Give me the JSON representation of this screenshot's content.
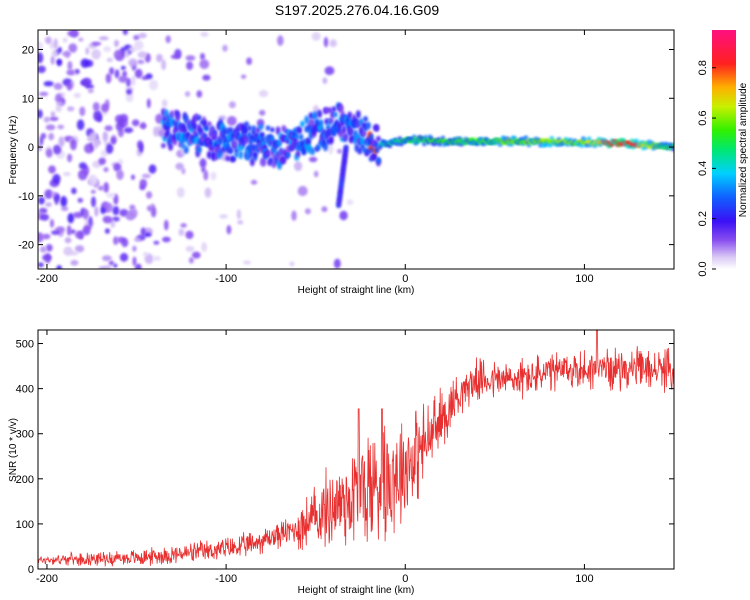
{
  "title": "S197.2025.276.04.16.G09",
  "chart_data": [
    {
      "type": "heatmap",
      "xlabel": "Height of straight line (km)",
      "ylabel": "Frequency (Hz)",
      "xlim": [
        -205,
        150
      ],
      "ylim": [
        -25,
        24
      ],
      "xticks": [
        -200,
        -100,
        0,
        100
      ],
      "yticks": [
        -20,
        -10,
        0,
        10,
        20
      ],
      "colorbar": {
        "label": "Normalized spectral amplitude",
        "range": [
          0.0,
          0.95
        ],
        "ticks": [
          0.0,
          0.2,
          0.4,
          0.6,
          0.8
        ],
        "tick_labels": [
          "0.0",
          "0.2",
          "0.4",
          "0.6",
          "0.8"
        ],
        "colormap": "rainbow (violet-blue-cyan-green-yellow-red-magenta)"
      },
      "signal_ridge": [
        {
          "x": -130,
          "freq": 3.5,
          "amp": 0.35
        },
        {
          "x": -110,
          "freq": 2.0,
          "amp": 0.3
        },
        {
          "x": -90,
          "freq": 1.0,
          "amp": 0.3
        },
        {
          "x": -70,
          "freq": 0.0,
          "amp": 0.3
        },
        {
          "x": -50,
          "freq": 3.0,
          "amp": 0.3
        },
        {
          "x": -35,
          "freq": 5.0,
          "amp": 0.3
        },
        {
          "x": -15,
          "freq": 0.5,
          "amp": 0.45
        },
        {
          "x": 0,
          "freq": 1.5,
          "amp": 0.5
        },
        {
          "x": 25,
          "freq": 1.2,
          "amp": 0.55
        },
        {
          "x": 60,
          "freq": 1.2,
          "amp": 0.6
        },
        {
          "x": 100,
          "freq": 1.0,
          "amp": 0.65
        },
        {
          "x": 120,
          "freq": 0.8,
          "amp": 0.85
        },
        {
          "x": 150,
          "freq": 0.0,
          "amp": 0.5
        }
      ]
    },
    {
      "type": "line",
      "xlabel": "Height of straight line (km)",
      "ylabel": "SNR (10 * v/v)",
      "xlim": [
        -205,
        150
      ],
      "ylim": [
        0,
        530
      ],
      "xticks": [
        -200,
        -100,
        0,
        100
      ],
      "yticks": [
        0,
        100,
        200,
        300,
        400,
        500
      ],
      "color": "#e83030",
      "trend": [
        {
          "x": -205,
          "y": 20
        },
        {
          "x": -150,
          "y": 25
        },
        {
          "x": -120,
          "y": 35
        },
        {
          "x": -90,
          "y": 50
        },
        {
          "x": -60,
          "y": 90
        },
        {
          "x": -40,
          "y": 140
        },
        {
          "x": -25,
          "y": 170
        },
        {
          "x": -15,
          "y": 190
        },
        {
          "x": 0,
          "y": 230
        },
        {
          "x": 10,
          "y": 270
        },
        {
          "x": 20,
          "y": 330
        },
        {
          "x": 30,
          "y": 390
        },
        {
          "x": 40,
          "y": 420
        },
        {
          "x": 60,
          "y": 420
        },
        {
          "x": 90,
          "y": 440
        },
        {
          "x": 120,
          "y": 445
        },
        {
          "x": 150,
          "y": 440
        }
      ],
      "peaks": [
        {
          "x": -26,
          "y": 355
        },
        {
          "x": -13,
          "y": 355
        },
        {
          "x": 107,
          "y": 530
        }
      ]
    }
  ]
}
